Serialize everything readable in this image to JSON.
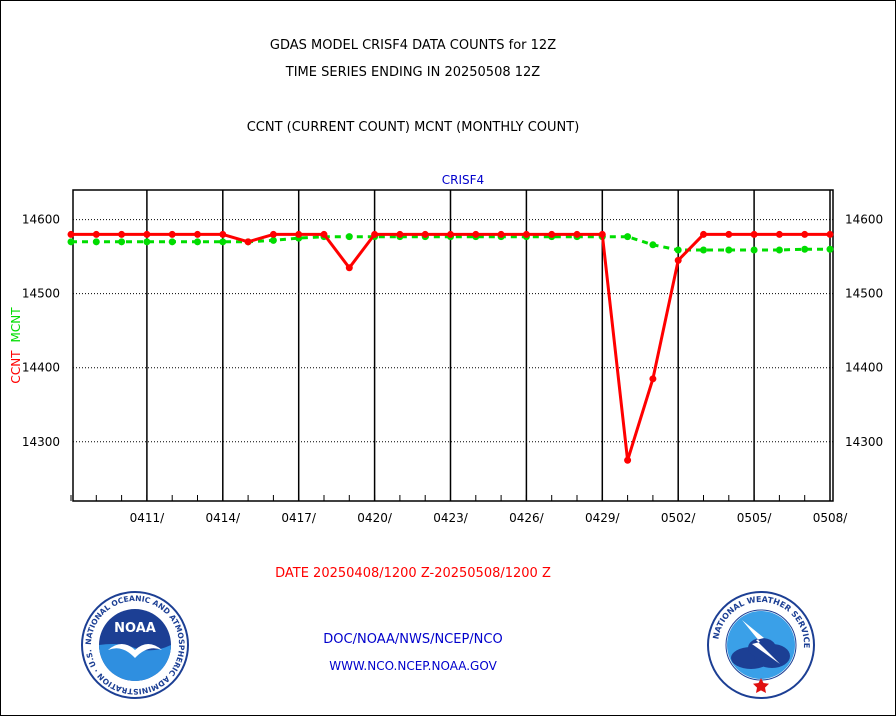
{
  "header": {
    "title_line1": "GDAS MODEL CRISF4 DATA COUNTS for 12Z",
    "title_line2": "TIME SERIES ENDING IN 20250508 12Z",
    "subtitle": "CCNT (CURRENT COUNT) MCNT (MONTHLY COUNT)"
  },
  "footer": {
    "date_range": "DATE 20250408/1200 Z-20250508/1200 Z",
    "org_path": "DOC/NOAA/NWS/NCEP/NCO",
    "website": "WWW.NCO.NCEP.NOAA.GOV"
  },
  "logos": {
    "noaa_text": "NOAA",
    "noaa_ring_text": "NATIONAL OCEANIC AND ATMOSPHERIC ADMINISTRATION · U.S. DEPARTMENT OF COMMERCE",
    "nws_ring_text": "NATIONAL WEATHER SERVICE"
  },
  "colors": {
    "ccnt": "#ff0000",
    "mcnt": "#00dd00",
    "chart_label": "#0000cc",
    "footer_date": "#ff0000",
    "footer_links": "#0000cc"
  },
  "chart_data": {
    "type": "line",
    "title": "CRISF4",
    "ylabel_parts": [
      "CCNT",
      "MCNT"
    ],
    "x": [
      "0408",
      "0409",
      "0410",
      "0411",
      "0412",
      "0413",
      "0414",
      "0415",
      "0416",
      "0417",
      "0418",
      "0419",
      "0420",
      "0421",
      "0422",
      "0423",
      "0424",
      "0425",
      "0426",
      "0427",
      "0428",
      "0429",
      "0430",
      "0501",
      "0502",
      "0503",
      "0504",
      "0505",
      "0506",
      "0507",
      "0508"
    ],
    "xtick_labels": [
      "0411/",
      "0414/",
      "0417/",
      "0420/",
      "0423/",
      "0426/",
      "0429/",
      "0502/",
      "0505/",
      "0508/"
    ],
    "xticks_at": [
      "0411",
      "0414",
      "0417",
      "0420",
      "0423",
      "0426",
      "0429",
      "0502",
      "0505",
      "0508"
    ],
    "yticks": [
      14300,
      14400,
      14500,
      14600
    ],
    "ylim": [
      14220,
      14640
    ],
    "grid": true,
    "series": [
      {
        "name": "CCNT",
        "values": [
          14580,
          14580,
          14580,
          14580,
          14580,
          14580,
          14580,
          14570,
          14580,
          14580,
          14580,
          14535,
          14580,
          14580,
          14580,
          14580,
          14580,
          14580,
          14580,
          14580,
          14580,
          14580,
          14275,
          14385,
          14545,
          14580,
          14580,
          14580,
          14580,
          14580,
          14580
        ]
      },
      {
        "name": "MCNT",
        "values": [
          14570,
          14570,
          14570,
          14570,
          14570,
          14570,
          14570,
          14570,
          14572,
          14575,
          14577,
          14577,
          14577,
          14577,
          14577,
          14577,
          14577,
          14577,
          14577,
          14577,
          14577,
          14577,
          14577,
          14566,
          14559,
          14559,
          14559,
          14559,
          14559,
          14560,
          14560
        ]
      }
    ]
  }
}
